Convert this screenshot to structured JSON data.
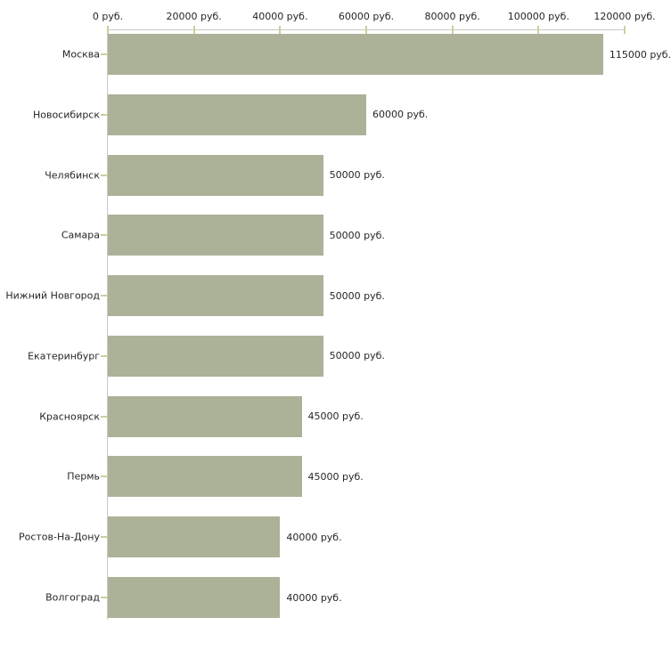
{
  "chart_data": {
    "type": "bar",
    "orientation": "horizontal",
    "title": "",
    "xlabel": "",
    "ylabel": "",
    "categories": [
      "Москва",
      "Новосибирск",
      "Челябинск",
      "Самара",
      "Нижний Новгород",
      "Екатеринбург",
      "Красноярск",
      "Пермь",
      "Ростов-На-Дону",
      "Волгоград"
    ],
    "values": [
      115000,
      60000,
      50000,
      50000,
      50000,
      50000,
      45000,
      45000,
      40000,
      40000
    ],
    "value_labels": [
      "115000 руб.",
      "60000 руб.",
      "50000 руб.",
      "50000 руб.",
      "50000 руб.",
      "50000 руб.",
      "45000 руб.",
      "45000 руб.",
      "40000 руб.",
      "40000 руб."
    ],
    "x_axis": {
      "position": "top",
      "tick_labels": [
        "0 руб.",
        "20000 руб.",
        "40000 руб.",
        "60000 руб.",
        "80000 руб.",
        "100000 руб.",
        "120000 руб."
      ],
      "tick_values": [
        0,
        20000,
        40000,
        60000,
        80000,
        100000,
        120000
      ]
    },
    "xlim": [
      0,
      120000
    ],
    "unit": "руб.",
    "grid": false,
    "legend": false,
    "colors": {
      "bar": "#abb298",
      "axis_line": "#c9c9c9",
      "tick_mark": "#cdcd9e",
      "text": "#262626",
      "background": "#ffffff"
    }
  }
}
